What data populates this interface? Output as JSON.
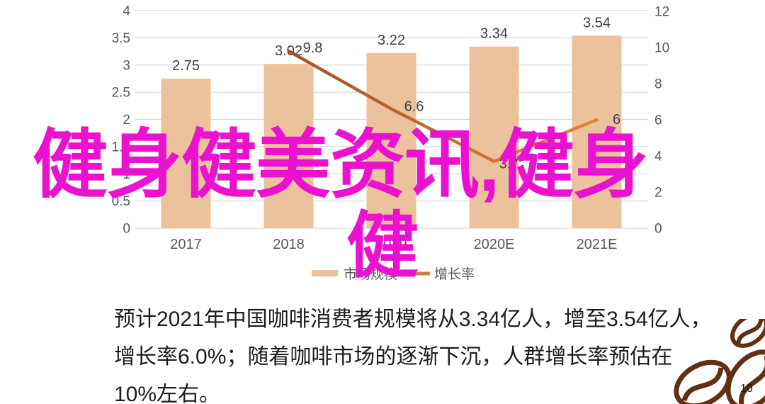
{
  "overlay_title": {
    "full_text": "健身健美资讯,健身健",
    "line1": "健身健美资讯,健身",
    "line2": "健",
    "color": "#EA12CE"
  },
  "chart_data": {
    "type": "bar+line",
    "categories": [
      "2017",
      "2018",
      "2019",
      "2020E",
      "2021E"
    ],
    "series": [
      {
        "name": "市场规模",
        "type": "bar",
        "axis": "left",
        "color": "#EBC29B",
        "values": [
          2.75,
          3.02,
          3.22,
          3.34,
          3.54
        ],
        "labels": [
          "2.75",
          "3.02",
          "3.22",
          "3.34",
          "3.54"
        ]
      },
      {
        "name": "增长率",
        "type": "line",
        "axis": "right",
        "color_start": "#A0522A",
        "color_mid": "#C96F35",
        "color_end": "#E2873F",
        "legend_color": "#C8803F",
        "values": [
          null,
          9.8,
          6.6,
          3.7,
          6
        ],
        "labels": [
          null,
          "9.8",
          "6.6",
          "3.7",
          "6"
        ]
      }
    ],
    "left_axis": {
      "min": 0,
      "max": 4,
      "step": 0.5,
      "tick_labels": [
        "0",
        "0.5",
        "1",
        "1.5",
        "2",
        "2.5",
        "3",
        "3.5",
        "4"
      ]
    },
    "right_axis": {
      "min": 0,
      "max": 12,
      "step": 2,
      "tick_labels": [
        "0",
        "2",
        "4",
        "6",
        "8",
        "10",
        "12"
      ]
    },
    "grid": true,
    "legend_position": "bottom-center",
    "styles": {
      "grid_color": "#D9D9D9",
      "axis_label_color": "#595959",
      "value_label_color": "#3F3F3F",
      "background": "#FFFFFF"
    }
  },
  "caption": {
    "color": "#1C1C1C",
    "lines": [
      "预计2021年中国咖啡消费者规模将从3.34亿人，增至3.54亿人，",
      "增长率6.0%；随着咖啡市场的逐渐下沉，人群增长率预估在",
      "10%左右。"
    ]
  },
  "footer": {
    "page_number": "10",
    "beans_color": "#5F3012"
  }
}
